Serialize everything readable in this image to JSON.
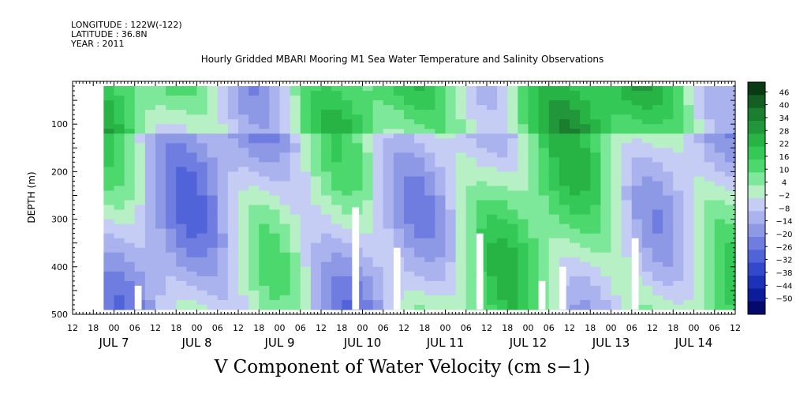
{
  "header": {
    "longitude": "LONGITUDE : 122W(-122)",
    "latitude": "LATITUDE : 36.8N",
    "year": "YEAR : 2011"
  },
  "chart_data": {
    "type": "heatmap",
    "title": "Hourly Gridded MBARI Mooring M1 Sea Water Temperature and Salinity Observations",
    "variable_title": "V Component of Water Velocity (cm s−1)",
    "ylabel": "DEPTH (m)",
    "y_ticks": [
      100,
      200,
      300,
      400,
      500
    ],
    "ylim": [
      500,
      10
    ],
    "y_reversed": true,
    "x_hour_ticks": [
      "12",
      "18",
      "00",
      "06",
      "12",
      "18",
      "00",
      "06",
      "12",
      "18",
      "00",
      "06",
      "12",
      "18",
      "00",
      "06",
      "12",
      "18",
      "00",
      "06",
      "12",
      "18",
      "00",
      "06",
      "12",
      "18",
      "00",
      "06",
      "12",
      "18",
      "00",
      "06",
      "12"
    ],
    "x_day_labels": [
      "JUL 7",
      "JUL 8",
      "JUL 9",
      "JUL 10",
      "JUL 11",
      "JUL 12",
      "JUL 13",
      "JUL 14"
    ],
    "xlim": [
      "2011-07-06T12:00",
      "2011-07-14T12:00"
    ],
    "data_start": "2011-07-06T21:00",
    "colorbar": {
      "labels": [
        "46",
        "40",
        "34",
        "28",
        "22",
        "16",
        "10",
        "4",
        "−2",
        "−8",
        "−14",
        "−20",
        "−26",
        "−32",
        "−38",
        "−44",
        "−50"
      ],
      "range": [
        -50,
        50
      ],
      "colors": [
        "#0a3a14",
        "#125e23",
        "#1a7d2f",
        "#22963a",
        "#28b445",
        "#34c857",
        "#4cd86d",
        "#7ee89a",
        "#b6f0c4",
        "#c6cdf5",
        "#aab3ee",
        "#8e99e6",
        "#6f7de0",
        "#5063d8",
        "#3448cc",
        "#1c30b8",
        "#0d1c98",
        "#050a6a"
      ]
    },
    "cells_grid": {
      "time_step_hours": 6,
      "depth_step_m": 20
    },
    "gaps": [
      {
        "day": "JUL 7",
        "hour": "06",
        "depth_range": [
          440,
          490
        ]
      },
      {
        "day": "JUL 9",
        "hour": "21",
        "depth_range": [
          275,
          490
        ]
      },
      {
        "day": "JUL 10",
        "hour": "09",
        "depth_range": [
          360,
          490
        ]
      },
      {
        "day": "JUL 11",
        "hour": "09",
        "depth_range": [
          330,
          490
        ]
      },
      {
        "day": "JUL 12",
        "hour": "03",
        "depth_range": [
          430,
          490
        ]
      },
      {
        "day": "JUL 12",
        "hour": "09",
        "depth_range": [
          400,
          490
        ]
      },
      {
        "day": "JUL 13",
        "hour": "06",
        "depth_range": [
          340,
          490
        ]
      }
    ]
  }
}
